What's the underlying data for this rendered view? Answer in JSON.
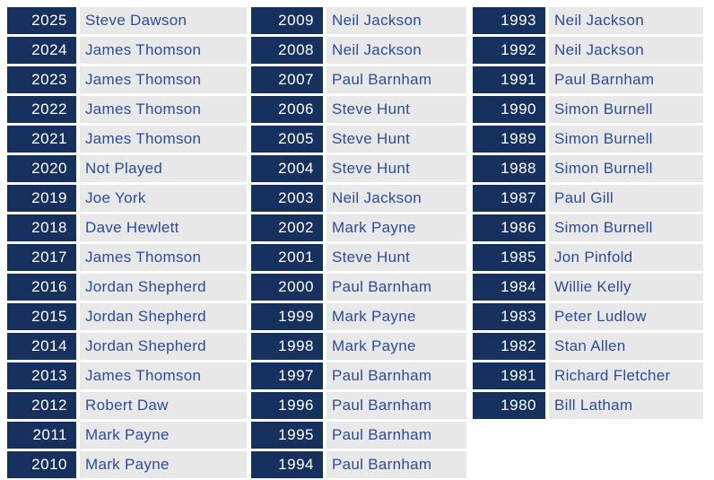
{
  "colors": {
    "year_cell_bg": "#17315E",
    "year_text": "#FFFFFF",
    "name_cell_bg": "#E8E8E8",
    "name_text": "#2B4C9B",
    "page_bg": "#FFFFFF"
  },
  "table": {
    "description": "Winners by year table, three column groups of year/name pairs",
    "columns": [
      {
        "entries": [
          {
            "year": "2025",
            "name": "Steve Dawson"
          },
          {
            "year": "2024",
            "name": "James Thomson"
          },
          {
            "year": "2023",
            "name": "James Thomson"
          },
          {
            "year": "2022",
            "name": "James Thomson"
          },
          {
            "year": "2021",
            "name": "James Thomson"
          },
          {
            "year": "2020",
            "name": "Not Played"
          },
          {
            "year": "2019",
            "name": "Joe York"
          },
          {
            "year": "2018",
            "name": "Dave Hewlett"
          },
          {
            "year": "2017",
            "name": "James Thomson"
          },
          {
            "year": "2016",
            "name": "Jordan Shepherd"
          },
          {
            "year": "2015",
            "name": "Jordan Shepherd"
          },
          {
            "year": "2014",
            "name": "Jordan Shepherd"
          },
          {
            "year": "2013",
            "name": "James Thomson"
          },
          {
            "year": "2012",
            "name": "Robert Daw"
          },
          {
            "year": "2011",
            "name": "Mark Payne"
          },
          {
            "year": "2010",
            "name": "Mark Payne"
          }
        ]
      },
      {
        "entries": [
          {
            "year": "2009",
            "name": "Neil Jackson"
          },
          {
            "year": "2008",
            "name": "Neil Jackson"
          },
          {
            "year": "2007",
            "name": "Paul Barnham"
          },
          {
            "year": "2006",
            "name": "Steve Hunt"
          },
          {
            "year": "2005",
            "name": "Steve Hunt"
          },
          {
            "year": "2004",
            "name": "Steve Hunt"
          },
          {
            "year": "2003",
            "name": "Neil Jackson"
          },
          {
            "year": "2002",
            "name": "Mark Payne"
          },
          {
            "year": "2001",
            "name": "Steve Hunt"
          },
          {
            "year": "2000",
            "name": "Paul Barnham"
          },
          {
            "year": "1999",
            "name": "Mark Payne"
          },
          {
            "year": "1998",
            "name": "Mark Payne"
          },
          {
            "year": "1997",
            "name": "Paul Barnham"
          },
          {
            "year": "1996",
            "name": "Paul Barnham"
          },
          {
            "year": "1995",
            "name": "Paul Barnham"
          },
          {
            "year": "1994",
            "name": "Paul Barnham"
          }
        ]
      },
      {
        "entries": [
          {
            "year": "1993",
            "name": "Neil Jackson"
          },
          {
            "year": "1992",
            "name": "Neil Jackson"
          },
          {
            "year": "1991",
            "name": "Paul Barnham"
          },
          {
            "year": "1990",
            "name": "Simon Burnell"
          },
          {
            "year": "1989",
            "name": "Simon Burnell"
          },
          {
            "year": "1988",
            "name": "Simon Burnell"
          },
          {
            "year": "1987",
            "name": "Paul Gill"
          },
          {
            "year": "1986",
            "name": "Simon Burnell"
          },
          {
            "year": "1985",
            "name": "Jon Pinfold"
          },
          {
            "year": "1984",
            "name": "Willie Kelly"
          },
          {
            "year": "1983",
            "name": "Peter Ludlow"
          },
          {
            "year": "1982",
            "name": "Stan Allen"
          },
          {
            "year": "1981",
            "name": "Richard Fletcher"
          },
          {
            "year": "1980",
            "name": "Bill Latham"
          }
        ]
      }
    ]
  }
}
